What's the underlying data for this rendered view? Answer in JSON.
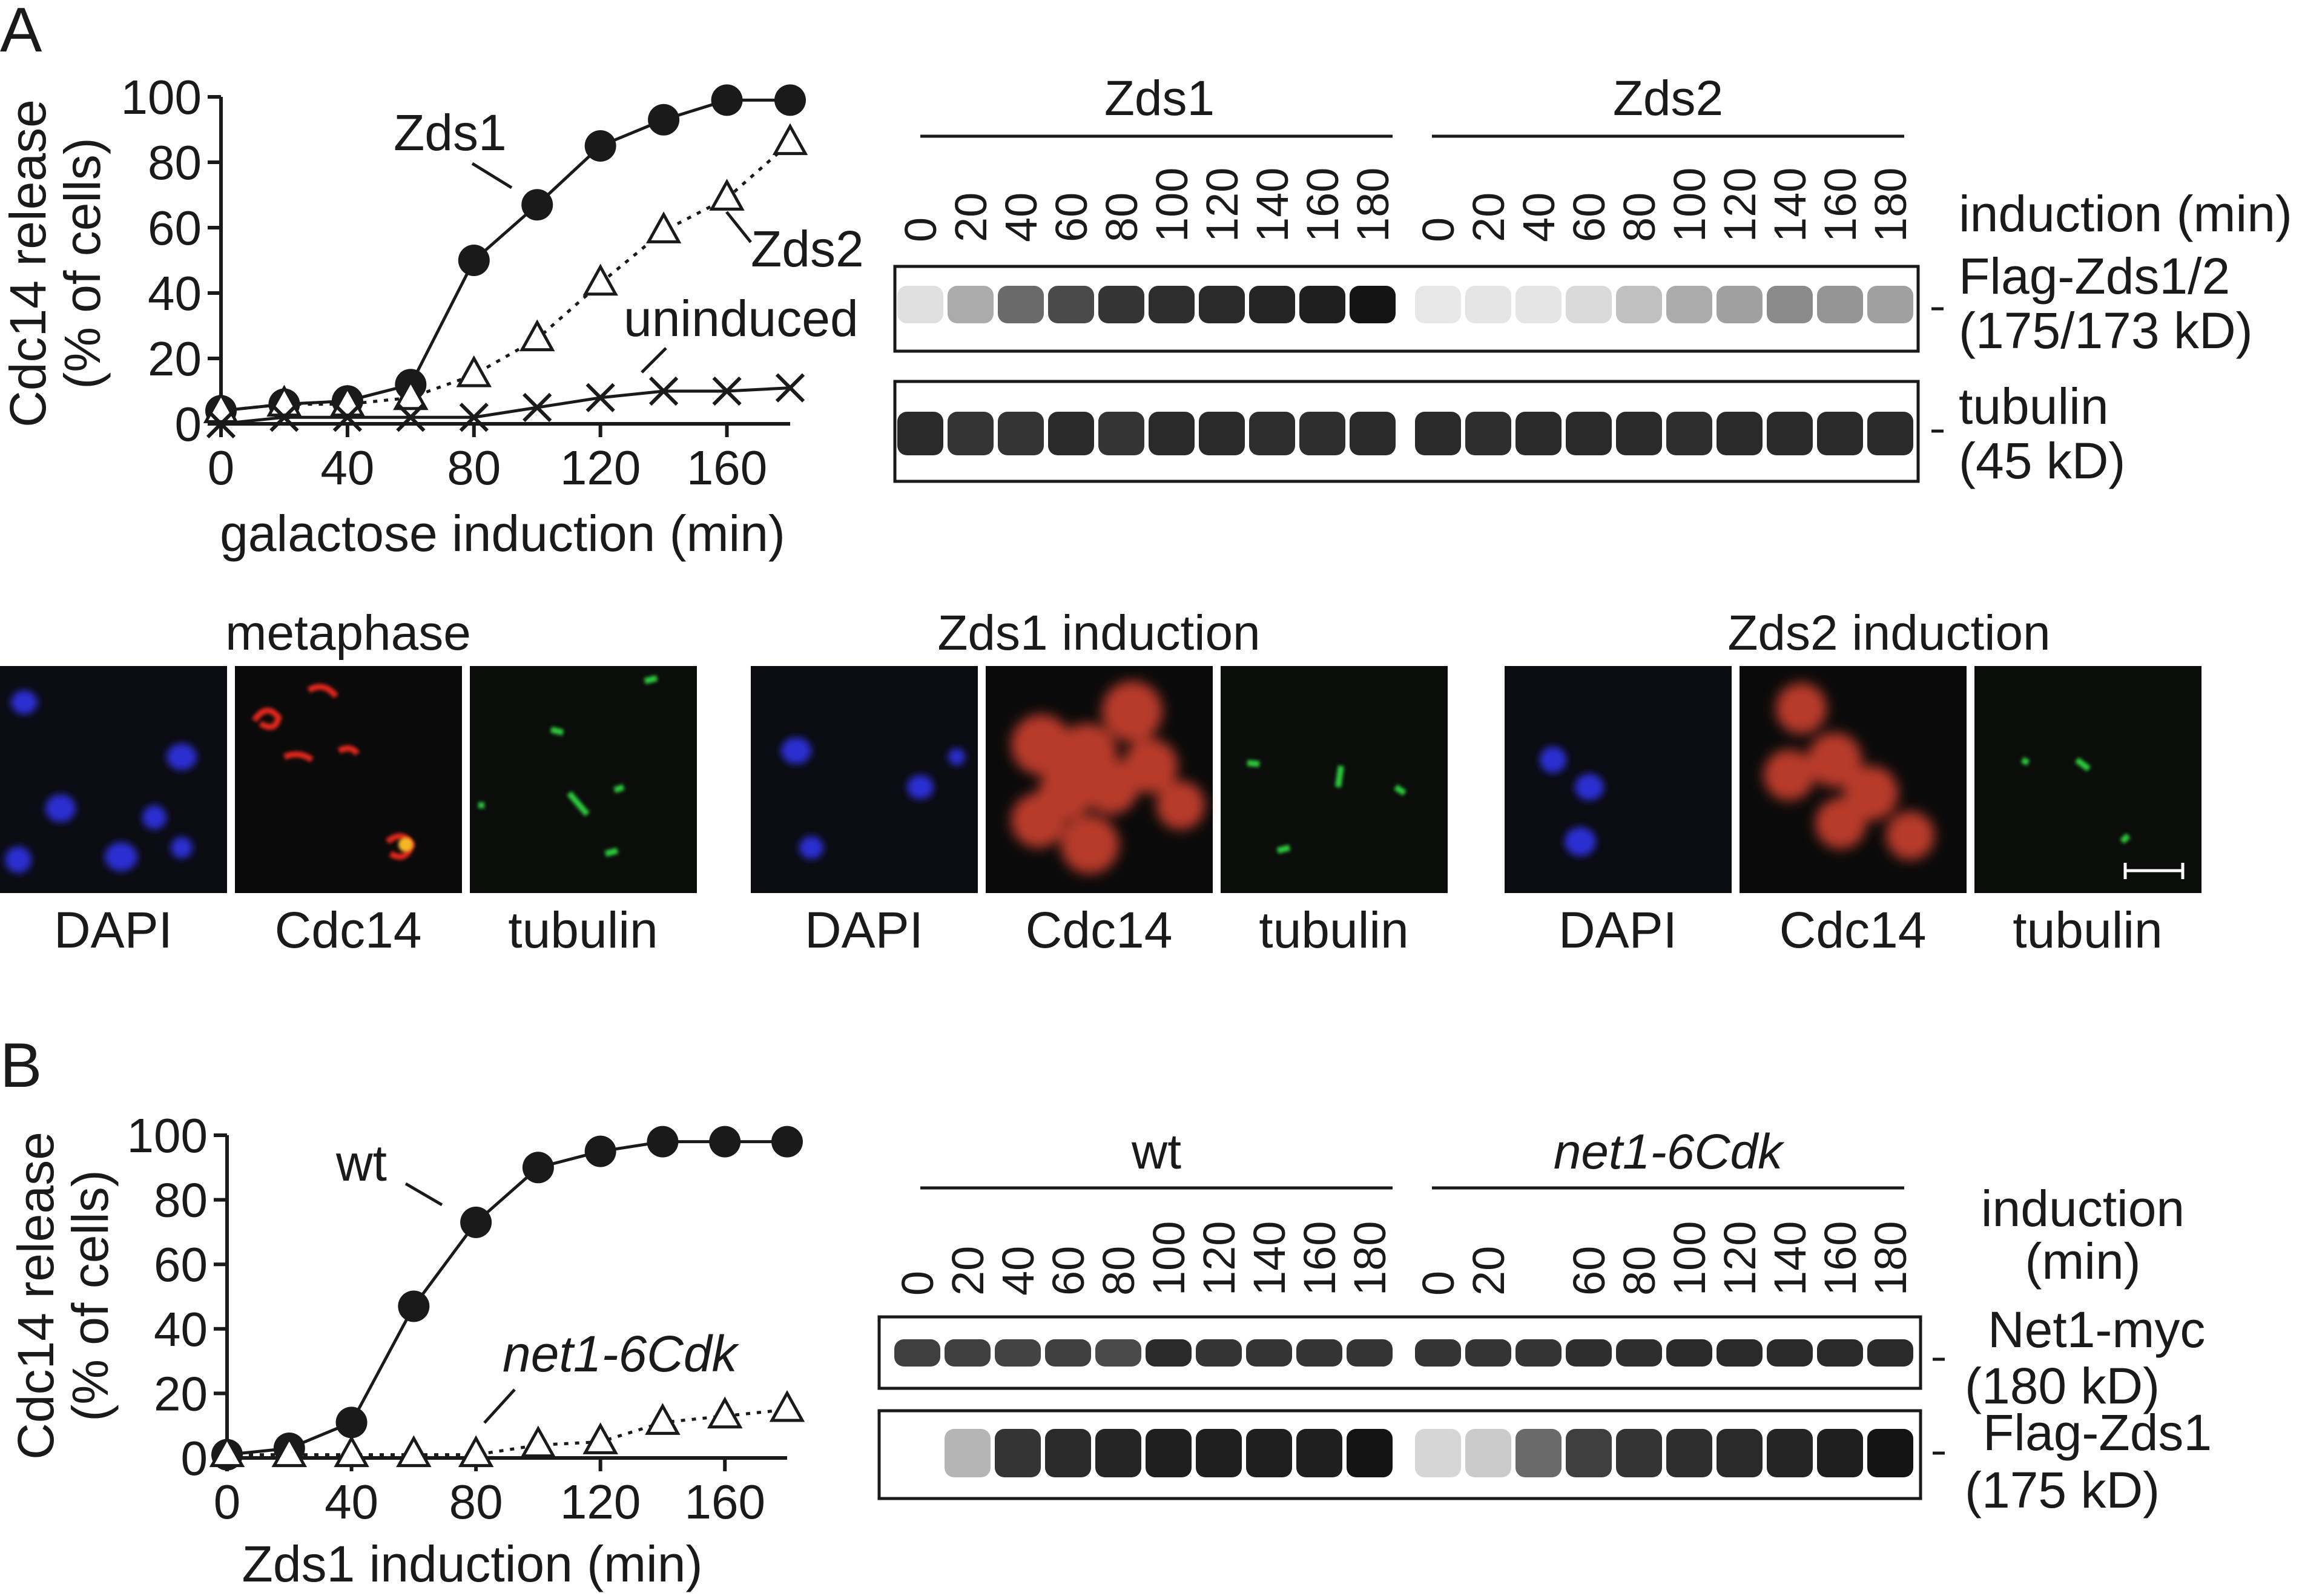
{
  "panel_labels": {
    "a": "A",
    "b": "B"
  },
  "chart_data": [
    {
      "type": "line",
      "id": "A",
      "ylabel_lines": [
        "Cdc14 release",
        "(% of cells)"
      ],
      "xlabel": "galactose induction (min)",
      "xlim": [
        0,
        180
      ],
      "ylim": [
        0,
        100
      ],
      "xticks": [
        "0",
        "40",
        "80",
        "120",
        "160"
      ],
      "xtick_values": [
        0,
        40,
        80,
        120,
        160
      ],
      "yticks": [
        "0",
        "20",
        "40",
        "60",
        "80",
        "100"
      ],
      "ytick_values": [
        0,
        20,
        40,
        60,
        80,
        100
      ],
      "series": [
        {
          "name": "Zds1",
          "marker": "circle",
          "line": "solid",
          "x": [
            0,
            20,
            40,
            60,
            80,
            100,
            120,
            140,
            160,
            180
          ],
          "y": [
            4,
            6,
            7,
            12,
            50,
            67,
            85,
            93,
            99,
            99
          ]
        },
        {
          "name": "Zds2",
          "marker": "triangle",
          "line": "dotted",
          "x": [
            0,
            20,
            40,
            60,
            80,
            100,
            120,
            140,
            160,
            180
          ],
          "y": [
            4,
            6,
            6,
            8,
            15,
            26,
            43,
            59,
            69,
            86
          ]
        },
        {
          "name": "uninduced",
          "marker": "x",
          "line": "solid",
          "x": [
            0,
            20,
            40,
            60,
            80,
            100,
            120,
            140,
            160,
            180
          ],
          "y": [
            0,
            2,
            2,
            2,
            2,
            5,
            8,
            10,
            10,
            11
          ]
        }
      ]
    },
    {
      "type": "line",
      "id": "B",
      "ylabel_lines": [
        "Cdc14 release",
        "(% of cells)"
      ],
      "xlabel": "Zds1 induction (min)",
      "xlim": [
        0,
        180
      ],
      "ylim": [
        0,
        100
      ],
      "xticks": [
        "0",
        "40",
        "80",
        "120",
        "160"
      ],
      "xtick_values": [
        0,
        40,
        80,
        120,
        160
      ],
      "yticks": [
        "0",
        "20",
        "40",
        "60",
        "80",
        "100"
      ],
      "ytick_values": [
        0,
        20,
        40,
        60,
        80,
        100
      ],
      "series": [
        {
          "name": "wt",
          "marker": "circle",
          "line": "solid",
          "x": [
            0,
            20,
            40,
            60,
            80,
            100,
            120,
            140,
            160,
            180
          ],
          "y": [
            1,
            3,
            11,
            47,
            73,
            90,
            95,
            98,
            98,
            98
          ]
        },
        {
          "name": "net1-6Cdk",
          "marker": "triangle",
          "line": "dotted",
          "x": [
            0,
            20,
            40,
            60,
            80,
            100,
            120,
            140,
            160,
            180
          ],
          "y": [
            1,
            1,
            1,
            1,
            1,
            4,
            5,
            11,
            13,
            15
          ]
        }
      ]
    }
  ],
  "blots_A": {
    "groups": [
      "Zds1",
      "Zds2"
    ],
    "lanes": [
      "0",
      "20",
      "40",
      "60",
      "80",
      "100",
      "120",
      "140",
      "160",
      "180",
      "0",
      "20",
      "40",
      "60",
      "80",
      "100",
      "120",
      "140",
      "160",
      "180"
    ],
    "lanes_header": "induction (min)",
    "rows": [
      {
        "label1": "Flag-Zds1/2",
        "label2": "(175/173 kD)",
        "intensities": [
          0.05,
          0.3,
          0.6,
          0.75,
          0.85,
          0.88,
          0.9,
          0.92,
          0.95,
          1.0,
          0.02,
          0.03,
          0.03,
          0.08,
          0.2,
          0.3,
          0.35,
          0.45,
          0.4,
          0.35
        ]
      },
      {
        "label1": "tubulin",
        "label2": "(45 kD)",
        "intensities": [
          0.9,
          0.85,
          0.85,
          0.9,
          0.85,
          0.9,
          0.9,
          0.88,
          0.88,
          0.9,
          0.9,
          0.88,
          0.9,
          0.9,
          0.9,
          0.88,
          0.9,
          0.9,
          0.9,
          0.9
        ]
      }
    ]
  },
  "blots_B": {
    "groups": [
      "wt",
      "net1-6Cdk"
    ],
    "lanes": [
      "0",
      "20",
      "40",
      "60",
      "80",
      "100",
      "120",
      "140",
      "160",
      "180",
      "0",
      "20",
      "",
      "60",
      "80",
      "100",
      "120",
      "140",
      "160",
      "180"
    ],
    "lanes_header": [
      "induction",
      "(min)"
    ],
    "rows": [
      {
        "label1": "Net1-myc",
        "label2": "(180 kD)",
        "intensities": [
          0.8,
          0.8,
          0.78,
          0.8,
          0.75,
          0.9,
          0.85,
          0.85,
          0.85,
          0.85,
          0.85,
          0.85,
          0.85,
          0.88,
          0.88,
          0.9,
          0.9,
          0.9,
          0.9,
          0.9
        ]
      },
      {
        "label1": "Flag-Zds1",
        "label2": "(175 kD)",
        "intensities": [
          0.0,
          0.25,
          0.85,
          0.9,
          0.92,
          0.95,
          0.95,
          0.95,
          0.95,
          1.0,
          0.1,
          0.15,
          0.6,
          0.8,
          0.85,
          0.88,
          0.9,
          0.92,
          0.95,
          1.0
        ]
      }
    ]
  },
  "microscopy": {
    "groups": [
      {
        "title": "metaphase",
        "channels": [
          "DAPI",
          "Cdc14",
          "tubulin"
        ]
      },
      {
        "title": "Zds1 induction",
        "channels": [
          "DAPI",
          "Cdc14",
          "tubulin"
        ]
      },
      {
        "title": "Zds2 induction",
        "channels": [
          "DAPI",
          "Cdc14",
          "tubulin"
        ]
      }
    ]
  }
}
